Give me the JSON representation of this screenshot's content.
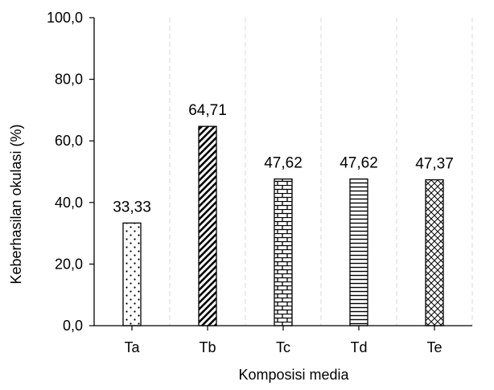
{
  "chart_data": {
    "type": "bar",
    "title": "",
    "categories": [
      "Ta",
      "Tb",
      "Tc",
      "Td",
      "Te"
    ],
    "values": [
      33.33,
      64.71,
      47.62,
      47.62,
      47.37
    ],
    "value_labels": [
      "33,33",
      "64,71",
      "47,62",
      "47,62",
      "47,37"
    ],
    "bar_patterns": [
      "dots",
      "diagonal-stripes",
      "bricks",
      "horizontal-lines",
      "crosshatch"
    ],
    "xlabel": "Komposisi media",
    "ylabel": "Keberhasilan okulasi (%)",
    "ylim": [
      0,
      100
    ],
    "y_ticks": [
      0,
      20,
      40,
      60,
      80,
      100
    ],
    "y_tick_labels": [
      "0,0",
      "20,0",
      "40,0",
      "60,0",
      "80,0",
      "100,0"
    ],
    "grid": "vertical dashed",
    "legend": "none",
    "colors": {
      "bar_fill": "#ffffff",
      "bar_stroke": "#000000",
      "pattern": "#000000",
      "axis": "#000000",
      "grid": "#d9d9d9"
    }
  }
}
